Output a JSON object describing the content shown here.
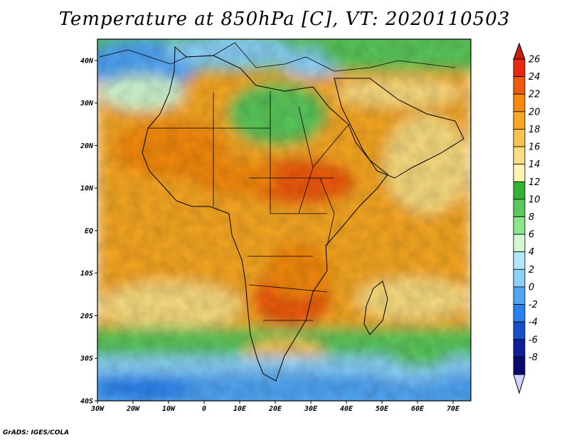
{
  "title": "Temperature at 850hPa [C], VT: 2020110503",
  "footer": "GrADS: IGES/COLA",
  "map": {
    "lon_range": [
      -30,
      75
    ],
    "lat_range": [
      -40,
      45
    ],
    "lon_ticks": [
      {
        "value": -30,
        "label": "30W"
      },
      {
        "value": -20,
        "label": "20W"
      },
      {
        "value": -10,
        "label": "10W"
      },
      {
        "value": 0,
        "label": "0"
      },
      {
        "value": 10,
        "label": "10E"
      },
      {
        "value": 20,
        "label": "20E"
      },
      {
        "value": 30,
        "label": "30E"
      },
      {
        "value": 40,
        "label": "40E"
      },
      {
        "value": 50,
        "label": "50E"
      },
      {
        "value": 60,
        "label": "60E"
      },
      {
        "value": 70,
        "label": "70E"
      }
    ],
    "lat_ticks": [
      {
        "value": 40,
        "label": "40N"
      },
      {
        "value": 30,
        "label": "30N"
      },
      {
        "value": 20,
        "label": "20N"
      },
      {
        "value": 10,
        "label": "10N"
      },
      {
        "value": 0,
        "label": "EQ"
      },
      {
        "value": -10,
        "label": "10S"
      },
      {
        "value": -20,
        "label": "20S"
      },
      {
        "value": -30,
        "label": "30S"
      },
      {
        "value": -40,
        "label": "40S"
      }
    ]
  },
  "colorbar": {
    "levels": [
      "26",
      "24",
      "22",
      "20",
      "18",
      "16",
      "14",
      "12",
      "10",
      "8",
      "6",
      "4",
      "2",
      "0",
      "-2",
      "-4",
      "-6",
      "-8"
    ],
    "colors": [
      "#e8280f",
      "#f05a10",
      "#f58a0c",
      "#f8a824",
      "#f9c350",
      "#fadd80",
      "#fff4b4",
      "#32b432",
      "#5ac85a",
      "#8ce68c",
      "#d2f8d2",
      "#b4e6ff",
      "#8cd2fa",
      "#50a5f5",
      "#2882f0",
      "#1450c8",
      "#0f1e96",
      "#0a0a6e"
    ],
    "top_cap_color": "#c81e0f",
    "bottom_cap_color": "#d2d2ff"
  }
}
